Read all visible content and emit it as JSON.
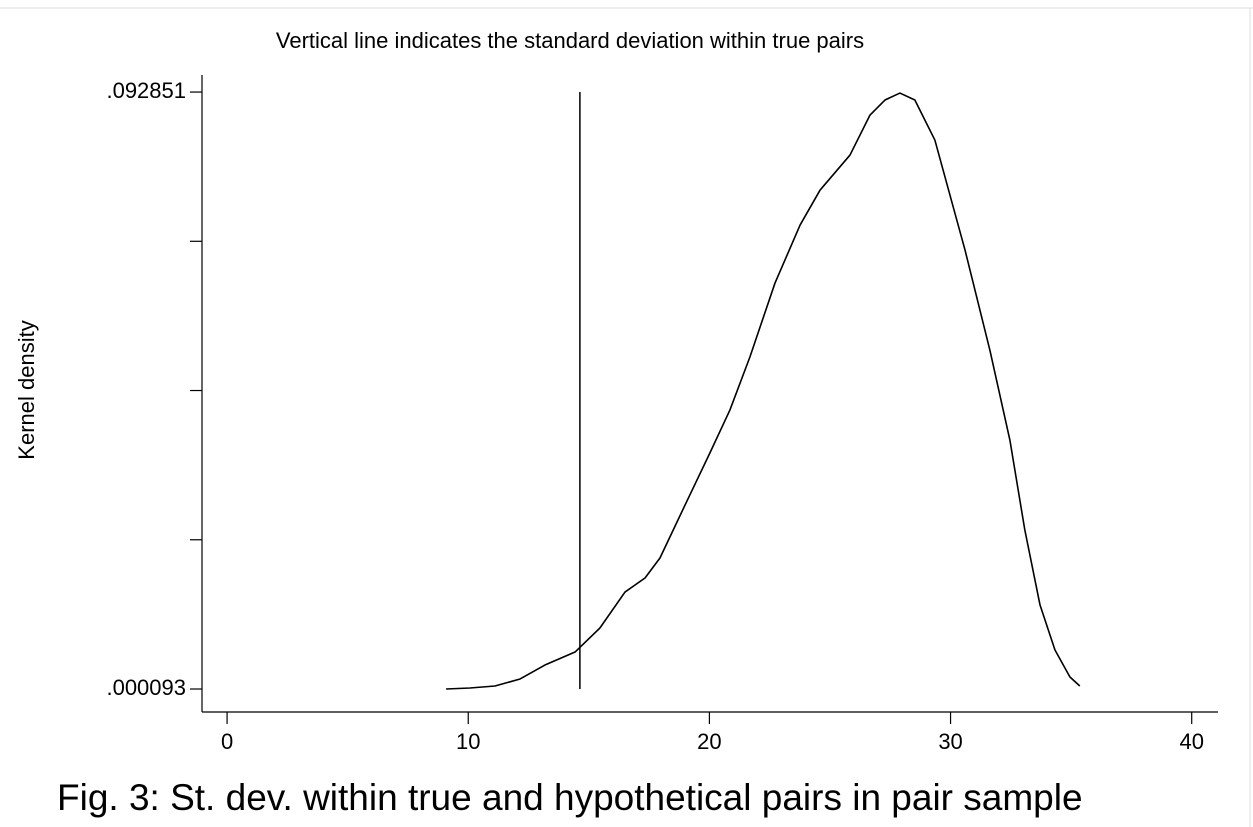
{
  "chart_data": {
    "type": "line",
    "title": "Vertical line indicates the standard deviation  within true pairs",
    "y_label": "Kernel density",
    "caption": "Fig. 3: St. dev. within true and hypothetical pairs in pair sample",
    "xlim": [
      -1.04,
      41.09
    ],
    "xticks": [
      0,
      10,
      20,
      30,
      40
    ],
    "ylim": [
      -0.00348,
      0.0955
    ],
    "yticks": [
      {
        "value": 9.3e-05,
        "label": ".000093"
      },
      {
        "value": 0.092851,
        "label": ".092851"
      }
    ],
    "yminor_ticks": [
      0.0232825,
      0.046472,
      0.0696615
    ],
    "color": "#000000",
    "vline": {
      "x": 14.63,
      "color": "#000000"
    },
    "x": [
      9.08,
      10.07,
      11.11,
      12.15,
      13.18,
      14.43,
      15.46,
      16.5,
      17.33,
      17.95,
      18.99,
      20.02,
      20.85,
      21.68,
      22.72,
      23.76,
      24.59,
      25.83,
      26.66,
      27.28,
      27.9,
      28.52,
      29.35,
      30.6,
      31.63,
      32.46,
      33.08,
      33.71,
      34.33,
      34.95,
      35.36
    ],
    "values": [
      9.3e-05,
      0.00025,
      0.00056,
      0.00165,
      0.00382,
      0.00584,
      0.00957,
      0.01516,
      0.01734,
      0.02045,
      0.02868,
      0.03676,
      0.04344,
      0.05168,
      0.06317,
      0.07218,
      0.07762,
      0.08306,
      0.08928,
      0.09161,
      0.09269,
      0.09161,
      0.08539,
      0.0683,
      0.05276,
      0.03878,
      0.0248,
      0.01314,
      0.00615,
      0.00196,
      0.00056
    ]
  }
}
